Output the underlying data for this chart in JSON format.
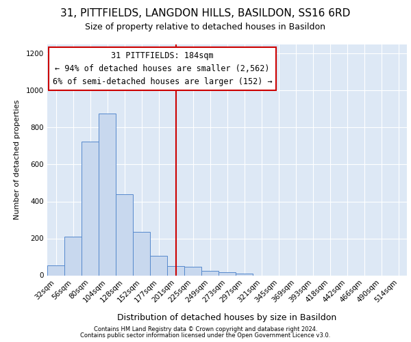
{
  "title1": "31, PITTFIELDS, LANGDON HILLS, BASILDON, SS16 6RD",
  "title2": "Size of property relative to detached houses in Basildon",
  "xlabel": "Distribution of detached houses by size in Basildon",
  "ylabel": "Number of detached properties",
  "bar_labels": [
    "32sqm",
    "56sqm",
    "80sqm",
    "104sqm",
    "128sqm",
    "152sqm",
    "177sqm",
    "201sqm",
    "225sqm",
    "249sqm",
    "273sqm",
    "297sqm",
    "321sqm",
    "345sqm",
    "369sqm",
    "393sqm",
    "418sqm",
    "442sqm",
    "466sqm",
    "490sqm",
    "514sqm"
  ],
  "bar_values": [
    52,
    210,
    725,
    875,
    440,
    235,
    105,
    50,
    45,
    25,
    15,
    10,
    0,
    0,
    0,
    0,
    0,
    0,
    0,
    0,
    0
  ],
  "bar_color": "#c8d8ee",
  "bar_edge_color": "#5588cc",
  "background_color": "#dde8f5",
  "red_line_index": 7.0,
  "annotation_text": "31 PITTFIELDS: 184sqm\n← 94% of detached houses are smaller (2,562)\n6% of semi-detached houses are larger (152) →",
  "ylim": [
    0,
    1250
  ],
  "yticks": [
    0,
    200,
    400,
    600,
    800,
    1000,
    1200
  ],
  "footer1": "Contains HM Land Registry data © Crown copyright and database right 2024.",
  "footer2": "Contains public sector information licensed under the Open Government Licence v3.0.",
  "box_facecolor": "#ffffff",
  "box_edgecolor": "#cc0000",
  "red_line_color": "#cc0000",
  "title1_fontsize": 11,
  "title2_fontsize": 9,
  "ylabel_fontsize": 8,
  "xlabel_fontsize": 9,
  "tick_fontsize": 7.5,
  "ann_fontsize": 8.5,
  "footer_fontsize": 6
}
